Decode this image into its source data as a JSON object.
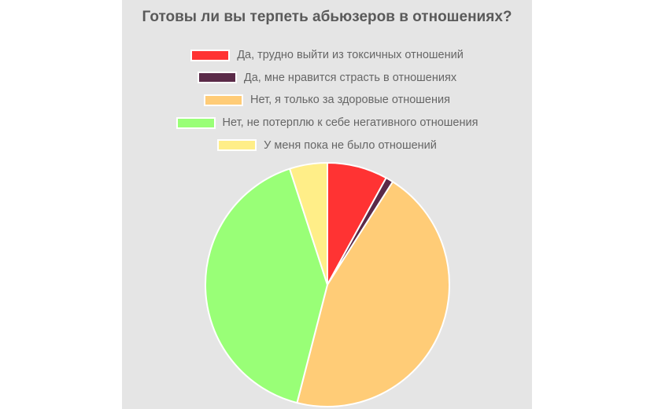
{
  "chart_data": {
    "type": "pie",
    "title": "Готовы ли вы терпеть абьюзеров в отношениях?",
    "legend_position": "top",
    "slices": [
      {
        "label": "Да, трудно выйти из токсичных отношений",
        "value": 8,
        "color": "#ff3333"
      },
      {
        "label": "Да, мне нравится страсть в отношениях",
        "value": 1,
        "color": "#5a2a48"
      },
      {
        "label": "Нет, я только за здоровые отношения",
        "value": 45,
        "color": "#ffcc77"
      },
      {
        "label": "Нет, не потерплю к себе негативного отношения",
        "value": 41,
        "color": "#99ff77"
      },
      {
        "label": "У меня пока не было отношений",
        "value": 5,
        "color": "#ffee88"
      }
    ]
  }
}
